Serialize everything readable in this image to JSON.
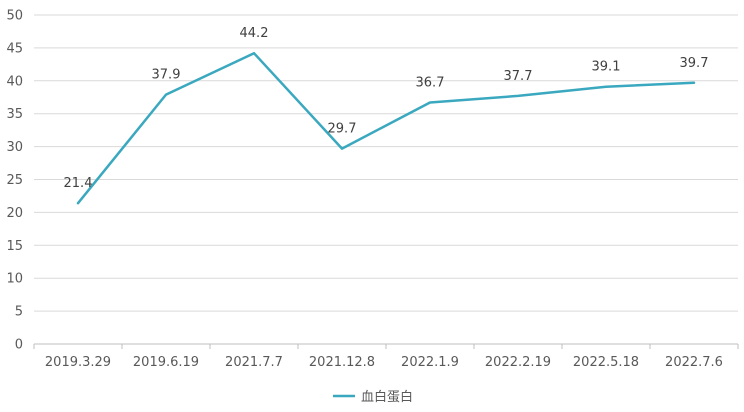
{
  "chart_data": {
    "type": "line",
    "categories": [
      "2019.3.29",
      "2019.6.19",
      "2021.7.7",
      "2021.12.8",
      "2022.1.9",
      "2022.2.19",
      "2022.5.18",
      "2022.7.6"
    ],
    "series": [
      {
        "name": "血白蛋白",
        "values": [
          21.4,
          37.9,
          44.2,
          29.7,
          36.7,
          37.7,
          39.1,
          39.7
        ],
        "color": "#3aa8bf"
      }
    ],
    "ylim": [
      0,
      50
    ],
    "yticks": [
      0,
      5,
      10,
      15,
      20,
      25,
      30,
      35,
      40,
      45,
      50
    ],
    "grid": true,
    "legend": "bottom"
  }
}
